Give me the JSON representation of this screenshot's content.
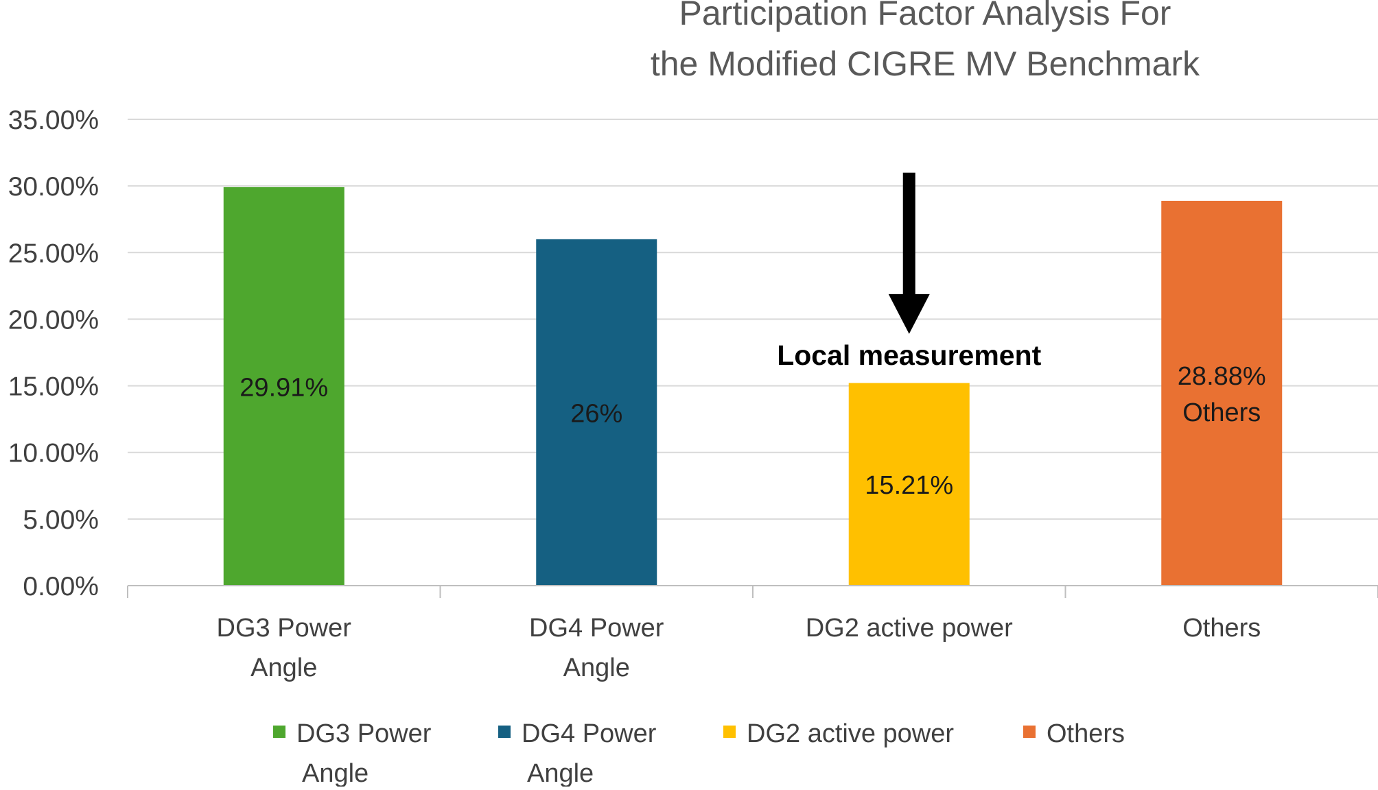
{
  "chart_data": {
    "type": "bar",
    "title_lines": [
      "Participation Factor Analysis For",
      "the Modified CIGRE MV Benchmark"
    ],
    "categories": [
      [
        "DG3 Power",
        "Angle"
      ],
      [
        "DG4 Power",
        "Angle"
      ],
      [
        "DG2 active power"
      ],
      [
        "Others"
      ]
    ],
    "values": [
      29.91,
      26.0,
      15.21,
      28.88
    ],
    "data_labels": [
      [
        "29.91%"
      ],
      [
        "26%"
      ],
      [
        "15.21%"
      ],
      [
        "28.88%",
        "Others"
      ]
    ],
    "colors": [
      "#4ea72e",
      "#156082",
      "#ffc000",
      "#e97132"
    ],
    "ylim": [
      0,
      35
    ],
    "yticks": [
      0,
      5,
      10,
      15,
      20,
      25,
      30,
      35
    ],
    "ytick_labels": [
      "0.00%",
      "5.00%",
      "10.00%",
      "15.00%",
      "20.00%",
      "25.00%",
      "30.00%",
      "35.00%"
    ],
    "grid": true,
    "xlabel": "",
    "ylabel": "",
    "legend": {
      "position": "bottom",
      "entries": [
        [
          "DG3 Power",
          "Angle"
        ],
        [
          "DG4 Power",
          "Angle"
        ],
        [
          "DG2 active power"
        ],
        [
          "Others"
        ]
      ]
    },
    "annotation": {
      "text": "Local measurement",
      "category_index": 2,
      "arrow_from_value": 31,
      "arrow_to_value": 19
    }
  }
}
